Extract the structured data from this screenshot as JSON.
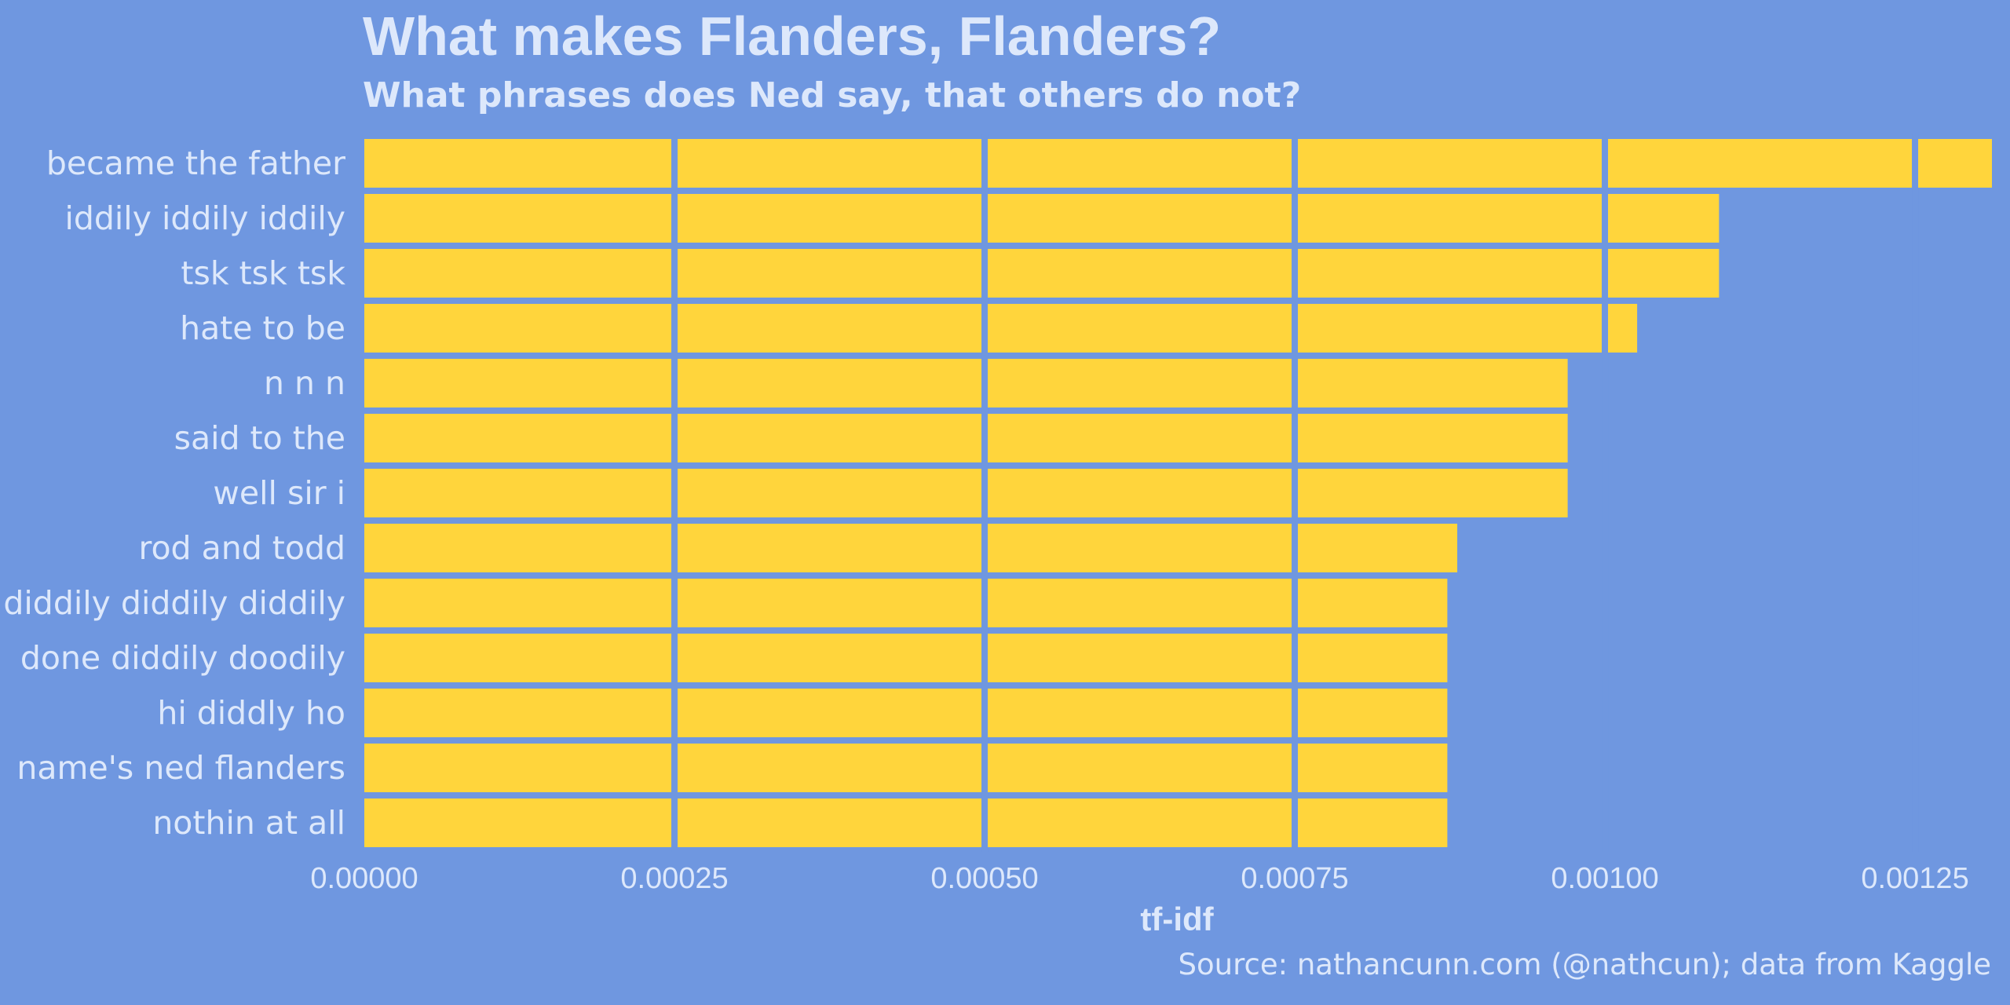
{
  "chart_data": {
    "type": "bar",
    "orientation": "horizontal",
    "title": "What makes Flanders, Flanders?",
    "subtitle": "What phrases does Ned say, that others do not?",
    "caption": "Source: nathancunn.com (@nathcun); data from Kaggle",
    "xlabel": "tf-idf",
    "ylabel": "",
    "categories": [
      "became the father",
      "iddily iddily iddily",
      "tsk tsk tsk",
      "hate to be",
      "n n n",
      "said to the",
      "well sir i",
      "rod and todd",
      "diddily diddily diddily",
      "done diddily doodily",
      "hi diddly ho",
      "name's ned flanders",
      "nothin at all"
    ],
    "values": [
      0.001312,
      0.001092,
      0.001092,
      0.001026,
      0.00097,
      0.00097,
      0.00097,
      0.000881,
      0.000873,
      0.000873,
      0.000873,
      0.000873,
      0.000873
    ],
    "x_ticks": [
      "0.00000",
      "0.00025",
      "0.00050",
      "0.00075",
      "0.00100",
      "0.00125"
    ],
    "x_tick_values": [
      0,
      0.00025,
      0.0005,
      0.00075,
      0.001,
      0.00125
    ],
    "xlim": [
      0,
      0.001312
    ],
    "grid": "vertical gridlines over bars",
    "legend": "none",
    "colors": {
      "background": "#6f97e0",
      "bar": "#ffd53c",
      "text": "#dde8fb"
    }
  }
}
